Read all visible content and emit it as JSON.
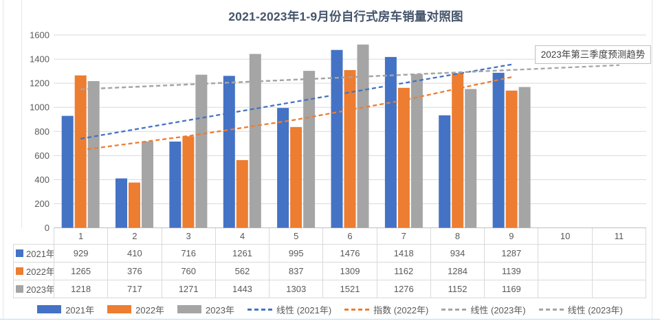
{
  "chart_data": {
    "type": "bar",
    "title": "2021-2023年1-9月份自行式房车销量对照图",
    "categories": [
      "1",
      "2",
      "3",
      "4",
      "5",
      "6",
      "7",
      "8",
      "9",
      "10",
      "11"
    ],
    "ylim": [
      0,
      1600
    ],
    "ytick_step": 200,
    "grid": true,
    "legend_position": "bottom",
    "series": [
      {
        "name": "2021年",
        "color": "#4472C4",
        "values": [
          929,
          410,
          716,
          1261,
          995,
          1476,
          1418,
          934,
          1287,
          null,
          null
        ]
      },
      {
        "name": "2022年",
        "color": "#ED7D31",
        "values": [
          1265,
          376,
          760,
          562,
          837,
          1309,
          1162,
          1284,
          1139,
          null,
          null
        ]
      },
      {
        "name": "2023年",
        "color": "#A5A5A5",
        "values": [
          1218,
          717,
          1271,
          1443,
          1303,
          1521,
          1276,
          1152,
          1169,
          null,
          null
        ]
      }
    ],
    "trendlines": [
      {
        "name": "线性 (2021年)",
        "color": "#4472C4",
        "points": [
          [
            1,
            739
          ],
          [
            9,
            1356
          ]
        ]
      },
      {
        "name": "指数 (2022年)",
        "color": "#ED7D31",
        "points": [
          [
            1,
            645
          ],
          [
            3,
            762
          ],
          [
            5,
            898
          ],
          [
            7,
            1060
          ],
          [
            9,
            1251
          ]
        ]
      },
      {
        "name": "线性 (2023年)",
        "color": "#A5A5A5",
        "points": [
          [
            1,
            1150
          ],
          [
            9,
            1310
          ]
        ]
      },
      {
        "name": "线性 (2023年)",
        "color": "#A5A5A5",
        "points": [
          [
            1,
            1150
          ],
          [
            11,
            1350
          ]
        ]
      }
    ],
    "annotation": {
      "text": "2023年第三季度预测趋势"
    }
  },
  "colors": {
    "title_text": "#44546A",
    "axis_text": "#595959",
    "gridline": "#D9D9D9",
    "axis_line": "#BFBFBF",
    "table_border": "#D9D9D9",
    "annotation_border": "#BFBFBF",
    "sheet_gridline": "#BDD7EE"
  }
}
